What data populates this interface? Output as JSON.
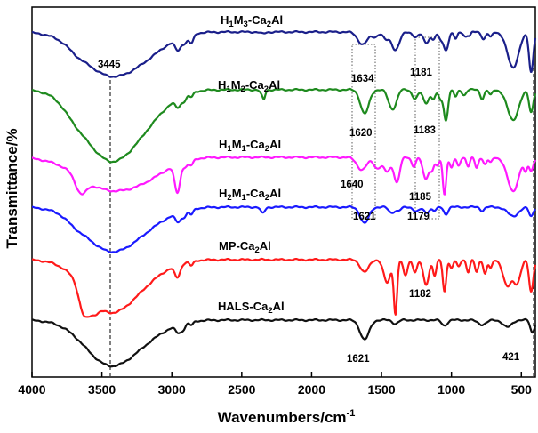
{
  "chart_data": {
    "type": "line",
    "title": "",
    "xlabel": "Wavenumbers/cm",
    "xlabel_superscript": "-1",
    "ylabel": "Transmittance/%",
    "xlim": [
      4000,
      400
    ],
    "xticks": [
      {
        "value": 4000,
        "label": "4000"
      },
      {
        "value": 3500,
        "label": "3500"
      },
      {
        "value": 3000,
        "label": "3000"
      },
      {
        "value": 2500,
        "label": "2500"
      },
      {
        "value": 2000,
        "label": "2000"
      },
      {
        "value": 1500,
        "label": "1500"
      },
      {
        "value": 1000,
        "label": "1000"
      },
      {
        "value": 500,
        "label": "500"
      }
    ],
    "series": [
      {
        "name": "H1M3-Ca2Al",
        "label_parts": [
          "H",
          "1",
          "M",
          "3",
          "-Ca",
          "2",
          "Al"
        ],
        "color": "#1a1f8a",
        "baseline": 36,
        "label_pos": [
          4000,
          400
        ],
        "features": [
          {
            "c": 3440,
            "w": 200,
            "d": 48
          },
          {
            "c": 3150,
            "w": 150,
            "d": 12
          },
          {
            "c": 3680,
            "w": 60,
            "d": 4
          },
          {
            "c": 2955,
            "w": 22,
            "d": 13
          },
          {
            "c": 2905,
            "w": 18,
            "d": 7
          },
          {
            "c": 2860,
            "w": 16,
            "d": 10
          },
          {
            "c": 2350,
            "w": 18,
            "d": 2
          },
          {
            "c": 1634,
            "w": 35,
            "d": 14
          },
          {
            "c": 1545,
            "w": 22,
            "d": 5
          },
          {
            "c": 1470,
            "w": 20,
            "d": 8
          },
          {
            "c": 1400,
            "w": 28,
            "d": 20
          },
          {
            "c": 1255,
            "w": 20,
            "d": 6
          },
          {
            "c": 1181,
            "w": 20,
            "d": 12
          },
          {
            "c": 1130,
            "w": 15,
            "d": 8
          },
          {
            "c": 1080,
            "w": 15,
            "d": 7
          },
          {
            "c": 1040,
            "w": 18,
            "d": 20
          },
          {
            "c": 970,
            "w": 12,
            "d": 8
          },
          {
            "c": 900,
            "w": 14,
            "d": 5
          },
          {
            "c": 870,
            "w": 10,
            "d": 4
          },
          {
            "c": 770,
            "w": 14,
            "d": 8
          },
          {
            "c": 720,
            "w": 12,
            "d": 6
          },
          {
            "c": 560,
            "w": 40,
            "d": 40
          },
          {
            "c": 430,
            "w": 15,
            "d": 45
          }
        ]
      },
      {
        "name": "H1M2-Ca2Al",
        "label_parts": [
          "H",
          "1",
          "M",
          "2",
          "-Ca",
          "2",
          "Al"
        ],
        "color": "#1e8a1e",
        "baseline": 101,
        "label_pos": [
          4000,
          400
        ],
        "features": [
          {
            "c": 3440,
            "w": 190,
            "d": 78
          },
          {
            "c": 3150,
            "w": 150,
            "d": 16
          },
          {
            "c": 3700,
            "w": 80,
            "d": 8
          },
          {
            "c": 2955,
            "w": 20,
            "d": 10
          },
          {
            "c": 2910,
            "w": 18,
            "d": 6
          },
          {
            "c": 2860,
            "w": 14,
            "d": 5
          },
          {
            "c": 2350,
            "w": 15,
            "d": 7
          },
          {
            "c": 2340,
            "w": 8,
            "d": 5
          },
          {
            "c": 1620,
            "w": 30,
            "d": 27
          },
          {
            "c": 1430,
            "w": 25,
            "d": 18
          },
          {
            "c": 1400,
            "w": 20,
            "d": 8
          },
          {
            "c": 1260,
            "w": 20,
            "d": 10
          },
          {
            "c": 1183,
            "w": 20,
            "d": 15
          },
          {
            "c": 1130,
            "w": 15,
            "d": 10
          },
          {
            "c": 1080,
            "w": 15,
            "d": 10
          },
          {
            "c": 1040,
            "w": 15,
            "d": 34
          },
          {
            "c": 970,
            "w": 12,
            "d": 8
          },
          {
            "c": 910,
            "w": 14,
            "d": 6
          },
          {
            "c": 780,
            "w": 14,
            "d": 10
          },
          {
            "c": 720,
            "w": 12,
            "d": 6
          },
          {
            "c": 560,
            "w": 40,
            "d": 34
          },
          {
            "c": 430,
            "w": 15,
            "d": 25
          }
        ]
      },
      {
        "name": "H1M1-Ca2Al",
        "label_parts": [
          "H",
          "1",
          "M",
          "1",
          "-Ca",
          "2",
          "Al"
        ],
        "color": "#ff19ff",
        "baseline": 177,
        "label_pos": [
          4000,
          400
        ],
        "features": [
          {
            "c": 3440,
            "w": 220,
            "d": 36
          },
          {
            "c": 3650,
            "w": 40,
            "d": 18
          },
          {
            "c": 3150,
            "w": 150,
            "d": 10
          },
          {
            "c": 2960,
            "w": 20,
            "d": 32
          },
          {
            "c": 2900,
            "w": 18,
            "d": 6
          },
          {
            "c": 2860,
            "w": 14,
            "d": 6
          },
          {
            "c": 1640,
            "w": 35,
            "d": 14
          },
          {
            "c": 1530,
            "w": 25,
            "d": 12
          },
          {
            "c": 1460,
            "w": 25,
            "d": 16
          },
          {
            "c": 1390,
            "w": 20,
            "d": 28
          },
          {
            "c": 1270,
            "w": 15,
            "d": 10
          },
          {
            "c": 1185,
            "w": 20,
            "d": 24
          },
          {
            "c": 1140,
            "w": 15,
            "d": 14
          },
          {
            "c": 1100,
            "w": 12,
            "d": 10
          },
          {
            "c": 1050,
            "w": 12,
            "d": 42
          },
          {
            "c": 1000,
            "w": 12,
            "d": 12
          },
          {
            "c": 950,
            "w": 12,
            "d": 10
          },
          {
            "c": 880,
            "w": 12,
            "d": 10
          },
          {
            "c": 820,
            "w": 12,
            "d": 12
          },
          {
            "c": 760,
            "w": 12,
            "d": 8
          },
          {
            "c": 720,
            "w": 12,
            "d": 6
          },
          {
            "c": 560,
            "w": 40,
            "d": 38
          },
          {
            "c": 470,
            "w": 12,
            "d": 14
          },
          {
            "c": 430,
            "w": 15,
            "d": 15
          }
        ]
      },
      {
        "name": "H2M1-Ca2Al",
        "label_parts": [
          "H",
          "2",
          "M",
          "1",
          "-Ca",
          "2",
          "Al"
        ],
        "color": "#1a1aff",
        "baseline": 233,
        "label_pos": [
          4000,
          400
        ],
        "features": [
          {
            "c": 3440,
            "w": 190,
            "d": 48
          },
          {
            "c": 3150,
            "w": 160,
            "d": 10
          },
          {
            "c": 3690,
            "w": 60,
            "d": 4
          },
          {
            "c": 2955,
            "w": 20,
            "d": 10
          },
          {
            "c": 2910,
            "w": 18,
            "d": 6
          },
          {
            "c": 2860,
            "w": 14,
            "d": 6
          },
          {
            "c": 2350,
            "w": 15,
            "d": 7
          },
          {
            "c": 1621,
            "w": 30,
            "d": 18
          },
          {
            "c": 1430,
            "w": 20,
            "d": 6
          },
          {
            "c": 1380,
            "w": 20,
            "d": 4
          },
          {
            "c": 1250,
            "w": 20,
            "d": 5
          },
          {
            "c": 1179,
            "w": 20,
            "d": 6
          },
          {
            "c": 1120,
            "w": 15,
            "d": 4
          },
          {
            "c": 1040,
            "w": 15,
            "d": 8
          },
          {
            "c": 780,
            "w": 14,
            "d": 4
          },
          {
            "c": 560,
            "w": 40,
            "d": 10
          },
          {
            "c": 430,
            "w": 15,
            "d": 10
          }
        ]
      },
      {
        "name": "MP-Ca2Al",
        "label_parts": [
          "MP-Ca",
          "2",
          "Al"
        ],
        "color": "#ff1a1a",
        "baseline": 292,
        "label_pos": [
          4000,
          400
        ],
        "features": [
          {
            "c": 3440,
            "w": 180,
            "d": 58
          },
          {
            "c": 3630,
            "w": 35,
            "d": 28
          },
          {
            "c": 3560,
            "w": 35,
            "d": 12
          },
          {
            "c": 3150,
            "w": 150,
            "d": 10
          },
          {
            "c": 2960,
            "w": 20,
            "d": 14
          },
          {
            "c": 2860,
            "w": 14,
            "d": 5
          },
          {
            "c": 1621,
            "w": 30,
            "d": 14
          },
          {
            "c": 1460,
            "w": 25,
            "d": 26
          },
          {
            "c": 1400,
            "w": 12,
            "d": 60
          },
          {
            "c": 1330,
            "w": 15,
            "d": 18
          },
          {
            "c": 1260,
            "w": 15,
            "d": 14
          },
          {
            "c": 1182,
            "w": 20,
            "d": 28
          },
          {
            "c": 1120,
            "w": 12,
            "d": 18
          },
          {
            "c": 1050,
            "w": 12,
            "d": 36
          },
          {
            "c": 1000,
            "w": 12,
            "d": 10
          },
          {
            "c": 950,
            "w": 12,
            "d": 8
          },
          {
            "c": 880,
            "w": 12,
            "d": 14
          },
          {
            "c": 820,
            "w": 12,
            "d": 14
          },
          {
            "c": 760,
            "w": 12,
            "d": 16
          },
          {
            "c": 720,
            "w": 12,
            "d": 10
          },
          {
            "c": 600,
            "w": 30,
            "d": 30
          },
          {
            "c": 530,
            "w": 25,
            "d": 25
          },
          {
            "c": 430,
            "w": 15,
            "d": 36
          }
        ]
      },
      {
        "name": "HALS-Ca2Al",
        "label_parts": [
          "HALS-Ca",
          "2",
          "Al"
        ],
        "color": "#111111",
        "baseline": 360,
        "label_pos": [
          4000,
          400
        ],
        "features": [
          {
            "c": 3440,
            "w": 180,
            "d": 50
          },
          {
            "c": 3150,
            "w": 150,
            "d": 10
          },
          {
            "c": 2955,
            "w": 20,
            "d": 8
          },
          {
            "c": 2920,
            "w": 18,
            "d": 6
          },
          {
            "c": 2860,
            "w": 14,
            "d": 4
          },
          {
            "c": 1621,
            "w": 32,
            "d": 22
          },
          {
            "c": 1400,
            "w": 20,
            "d": 4
          },
          {
            "c": 1050,
            "w": 20,
            "d": 6
          },
          {
            "c": 780,
            "w": 30,
            "d": 5
          },
          {
            "c": 600,
            "w": 30,
            "d": 8
          },
          {
            "c": 421,
            "w": 15,
            "d": 14
          }
        ]
      }
    ],
    "series_labels": [
      {
        "series": "H1M3-Ca2Al",
        "parts": [
          "H",
          "1",
          "M",
          "3",
          "-Ca",
          "2",
          "Al"
        ]
      },
      {
        "series": "H1M2-Ca2Al",
        "parts": [
          "H",
          "1",
          "M",
          "2",
          "-Ca",
          "2",
          "Al"
        ]
      },
      {
        "series": "H1M1-Ca2Al",
        "parts": [
          "H",
          "1",
          "M",
          "1",
          "-Ca",
          "2",
          "Al"
        ]
      },
      {
        "series": "H2M1-Ca2Al",
        "parts": [
          "H",
          "2",
          "M",
          "1",
          "-Ca",
          "2",
          "Al"
        ]
      },
      {
        "series": "MP-Ca2Al",
        "parts": [
          "MP-Ca",
          "2",
          "Al"
        ]
      },
      {
        "series": "HALS-Ca2Al",
        "parts": [
          "HALS-Ca",
          "2",
          "Al"
        ]
      }
    ],
    "annotations": [
      {
        "text": "3445",
        "wavenumber": 3445
      },
      {
        "text": "1634",
        "wavenumber": 1634
      },
      {
        "text": "1181",
        "wavenumber": 1181
      },
      {
        "text": "1620",
        "wavenumber": 1620
      },
      {
        "text": "1183",
        "wavenumber": 1183
      },
      {
        "text": "1640",
        "wavenumber": 1640
      },
      {
        "text": "1185",
        "wavenumber": 1185
      },
      {
        "text": "1621",
        "wavenumber": 1621
      },
      {
        "text": "1179",
        "wavenumber": 1179
      },
      {
        "text": "1182",
        "wavenumber": 1182
      },
      {
        "text": "1621",
        "wavenumber": 1621
      },
      {
        "text": "421",
        "wavenumber": 421
      }
    ],
    "reference_lines": [
      {
        "wavenumber": 3445,
        "style": "dashed"
      },
      {
        "wavenumber": 421,
        "style": "dashed"
      }
    ],
    "highlight_boxes": [
      {
        "from": 1720,
        "to": 1570,
        "style": "dotted"
      },
      {
        "from": 1275,
        "to": 1105,
        "style": "dotted"
      }
    ]
  }
}
